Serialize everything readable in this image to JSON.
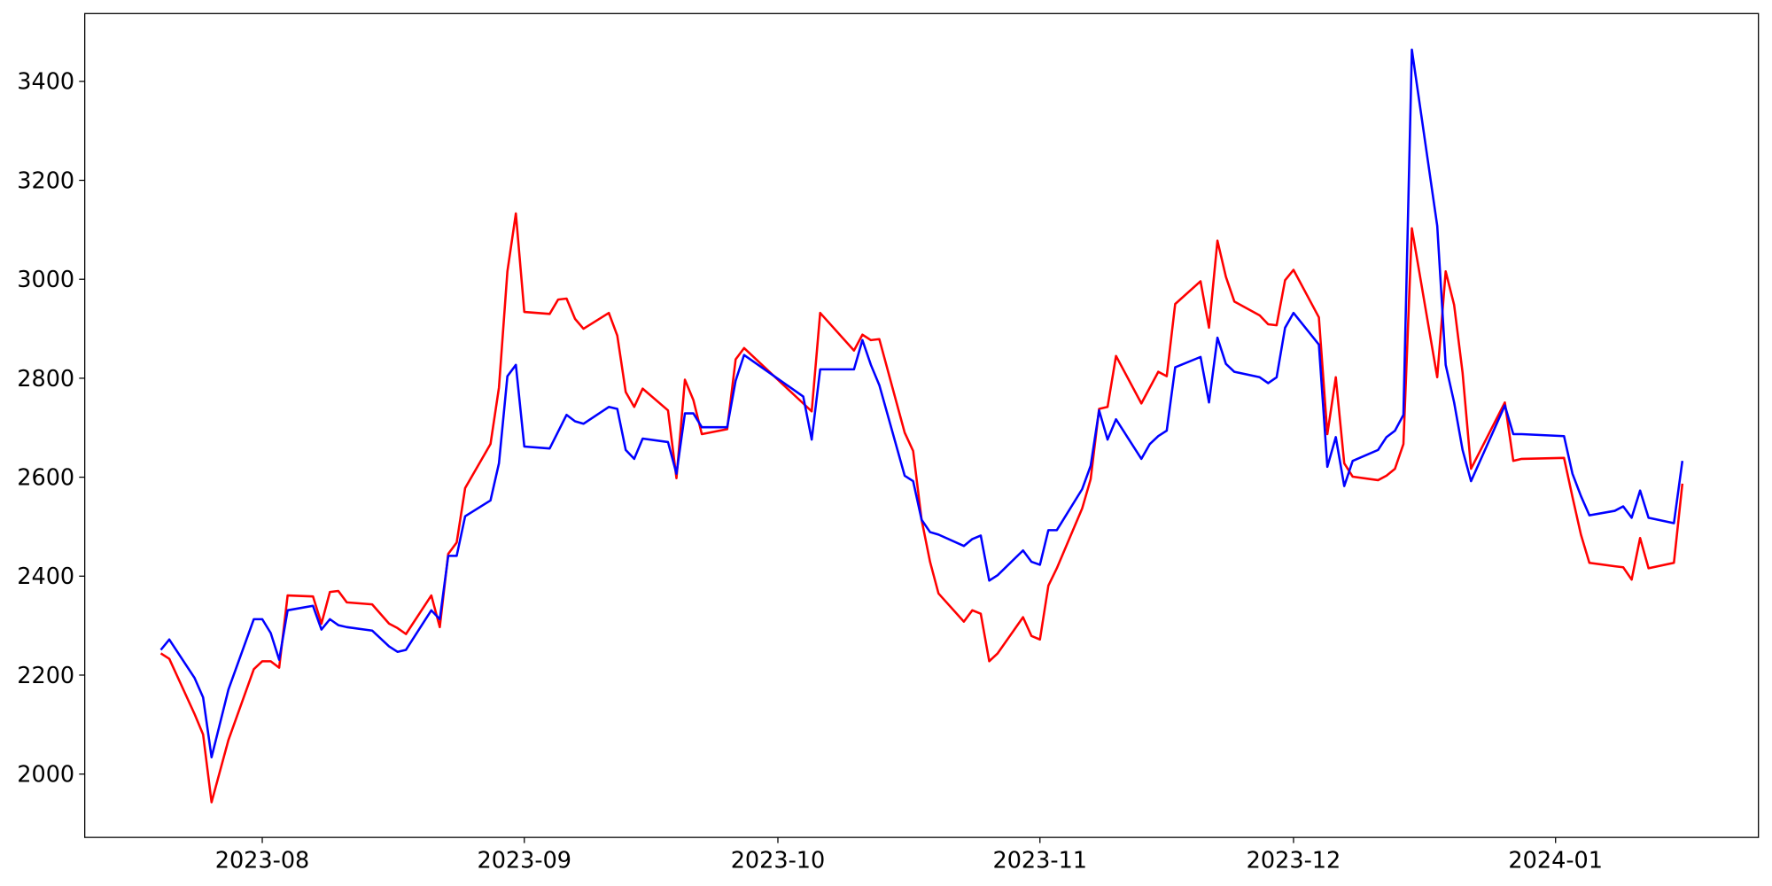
{
  "chart_data": {
    "type": "line",
    "x": [
      19558,
      19559,
      19562,
      19563,
      19564,
      19566,
      19569,
      19570,
      19571,
      19572,
      19573,
      19576,
      19577,
      19578,
      19579,
      19580,
      19583,
      19585,
      19586,
      19587,
      19590,
      19591,
      19592,
      19593,
      19594,
      19597,
      19598,
      19599,
      19600,
      19601,
      19604,
      19605,
      19606,
      19607,
      19608,
      19611,
      19612,
      19613,
      19614,
      19615,
      19618,
      19619,
      19620,
      19621,
      19622,
      19625,
      19626,
      19627,
      19634,
      19635,
      19636,
      19640,
      19641,
      19642,
      19643,
      19646,
      19647,
      19648,
      19649,
      19650,
      19653,
      19654,
      19655,
      19656,
      19657,
      19660,
      19661,
      19662,
      19663,
      19664,
      19667,
      19668,
      19669,
      19670,
      19671,
      19674,
      19675,
      19676,
      19677,
      19678,
      19681,
      19682,
      19683,
      19684,
      19685,
      19688,
      19689,
      19690,
      19691,
      19692,
      19695,
      19696,
      19697,
      19698,
      19699,
      19702,
      19703,
      19704,
      19705,
      19706,
      19709,
      19710,
      19711,
      19712,
      19713,
      19717,
      19718,
      19719,
      19724,
      19725,
      19726,
      19727,
      19730,
      19731,
      19732,
      19733,
      19734,
      19737,
      19738
    ],
    "series": [
      {
        "color": "#ff0000",
        "values": [
          2244,
          2233,
          2121,
          2080,
          1943,
          2069,
          2212,
          2228,
          2228,
          2215,
          2361,
          2359,
          2304,
          2368,
          2370,
          2347,
          2343,
          2304,
          2295,
          2283,
          2361,
          2297,
          2445,
          2468,
          2578,
          2667,
          2781,
          3016,
          3133,
          2934,
          2930,
          2959,
          2961,
          2920,
          2900,
          2932,
          2886,
          2772,
          2742,
          2779,
          2735,
          2598,
          2797,
          2756,
          2687,
          2697,
          2838,
          2861,
          2749,
          2733,
          2932,
          2856,
          2888,
          2877,
          2879,
          2690,
          2653,
          2514,
          2429,
          2365,
          2308,
          2331,
          2324,
          2228,
          2244,
          2317,
          2279,
          2272,
          2381,
          2416,
          2537,
          2596,
          2738,
          2742,
          2845,
          2749,
          2781,
          2813,
          2804,
          2950,
          2996,
          2902,
          3078,
          3005,
          2955,
          2927,
          2909,
          2907,
          2998,
          3019,
          2923,
          2687,
          2802,
          2628,
          2601,
          2594,
          2603,
          2617,
          2667,
          3103,
          2802,
          3016,
          2948,
          2811,
          2617,
          2751,
          2633,
          2637,
          2639,
          2560,
          2484,
          2427,
          2420,
          2418,
          2393,
          2477,
          2416,
          2427,
          2587
        ]
      },
      {
        "color": "#0000ff",
        "values": [
          2251,
          2272,
          2194,
          2155,
          2034,
          2171,
          2313,
          2313,
          2285,
          2231,
          2331,
          2340,
          2292,
          2313,
          2301,
          2297,
          2290,
          2258,
          2247,
          2251,
          2331,
          2313,
          2441,
          2441,
          2521,
          2553,
          2628,
          2804,
          2827,
          2662,
          2658,
          2692,
          2726,
          2713,
          2708,
          2742,
          2738,
          2655,
          2637,
          2678,
          2671,
          2607,
          2729,
          2729,
          2701,
          2701,
          2795,
          2847,
          2763,
          2676,
          2818,
          2818,
          2877,
          2827,
          2786,
          2603,
          2592,
          2514,
          2489,
          2484,
          2461,
          2475,
          2482,
          2391,
          2402,
          2452,
          2429,
          2423,
          2493,
          2493,
          2576,
          2623,
          2735,
          2676,
          2717,
          2637,
          2667,
          2683,
          2694,
          2822,
          2843,
          2751,
          2882,
          2829,
          2813,
          2802,
          2790,
          2802,
          2902,
          2932,
          2868,
          2621,
          2681,
          2582,
          2633,
          2655,
          2681,
          2694,
          2726,
          3464,
          3108,
          2827,
          2751,
          2655,
          2592,
          2745,
          2687,
          2687,
          2683,
          2607,
          2562,
          2523,
          2532,
          2541,
          2518,
          2573,
          2518,
          2507,
          2633
        ]
      }
    ],
    "xlim": [
      19549,
      19747
    ],
    "xticks": [
      {
        "value": 19570,
        "label": "2023-08"
      },
      {
        "value": 19601,
        "label": "2023-09"
      },
      {
        "value": 19631,
        "label": "2023-10"
      },
      {
        "value": 19662,
        "label": "2023-11"
      },
      {
        "value": 19692,
        "label": "2023-12"
      },
      {
        "value": 19723,
        "label": "2024-01"
      }
    ],
    "ylim": [
      1872,
      3537
    ],
    "yticks": [
      2000,
      2200,
      2400,
      2600,
      2800,
      3000,
      3200,
      3400
    ],
    "grid": false
  }
}
